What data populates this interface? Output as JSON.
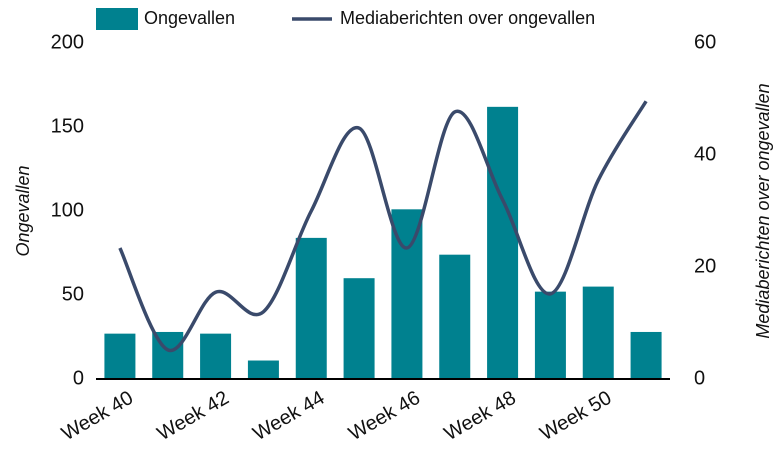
{
  "chart_data": {
    "type": "bar",
    "categories": [
      "Week 40",
      null,
      "Week 42",
      null,
      "Week 44",
      null,
      "Week 46",
      null,
      "Week 48",
      null,
      "Week 50",
      null
    ],
    "series": [
      {
        "name": "Ongevallen",
        "type": "bar",
        "color": "#00818f",
        "values": [
          27,
          28,
          27,
          11,
          84,
          60,
          101,
          74,
          162,
          52,
          55,
          28
        ]
      },
      {
        "name": "Mediaberichten over ongevallen",
        "type": "line",
        "axis": "y2",
        "color": "#3a4a6b",
        "values": [
          23.4,
          5.2,
          15.5,
          12,
          30,
          44.8,
          23.4,
          47.7,
          32,
          15.2,
          35.5,
          49.6
        ]
      }
    ],
    "ylabel": "Ongevallen",
    "y2label": "Mediaberichten over ongevallen",
    "ylim": [
      0,
      200
    ],
    "yticks": [
      0,
      50,
      100,
      150,
      200
    ],
    "y2lim": [
      0,
      60
    ],
    "y2ticks": [
      0,
      20,
      40,
      60
    ],
    "legend": "top",
    "grid": false
  }
}
